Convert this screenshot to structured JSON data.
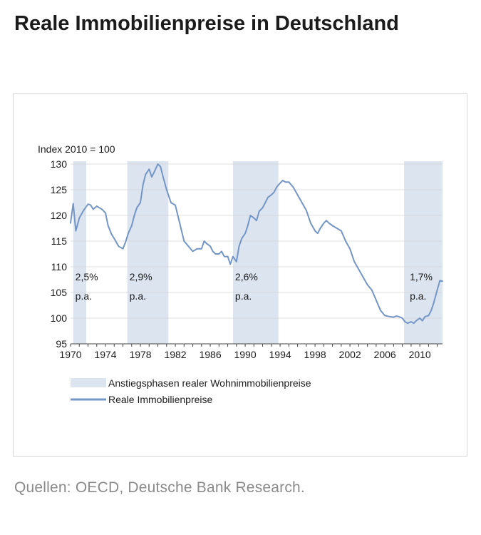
{
  "title": "Reale Immobilienpreise in Deutschland",
  "source": "Quellen: OECD, Deutsche Bank Research.",
  "colors": {
    "line": "#7496c6",
    "shading": "#dce4f0",
    "text": "#1b1b1b",
    "source": "#8a8a8a"
  },
  "chart_data": {
    "type": "line",
    "ylabel": "Index 2010 = 100",
    "ylim": [
      95,
      130
    ],
    "yticks": [
      95,
      100,
      105,
      110,
      115,
      120,
      125,
      130
    ],
    "xlim": [
      1970,
      2012.6
    ],
    "xticks": [
      1970,
      1974,
      1978,
      1982,
      1986,
      1990,
      1994,
      1998,
      2002,
      2006,
      2010
    ],
    "legend": [
      {
        "label": "Anstiegsphasen realer Wohnimmobilienpreise",
        "kind": "area"
      },
      {
        "label": "Reale Immobilienpreise",
        "kind": "line"
      }
    ],
    "shaded_periods": [
      {
        "start": 1970.3,
        "end": 1971.8,
        "label_line1": "2,5%",
        "label_line2": "p.a."
      },
      {
        "start": 1976.5,
        "end": 1981.2,
        "label_line1": "2,9%",
        "label_line2": "p.a."
      },
      {
        "start": 1988.6,
        "end": 1993.8,
        "label_line1": "2,6%",
        "label_line2": "p.a."
      },
      {
        "start": 2008.2,
        "end": 2012.6,
        "label_line1": "1,7%",
        "label_line2": "p.a."
      }
    ],
    "series": [
      {
        "name": "Reale Immobilienpreise",
        "x": [
          1970.0,
          1970.3,
          1970.6,
          1971.0,
          1971.5,
          1972.0,
          1972.3,
          1972.6,
          1973.0,
          1973.3,
          1973.6,
          1974.0,
          1974.3,
          1974.7,
          1975.0,
          1975.5,
          1976.0,
          1976.3,
          1976.6,
          1977.0,
          1977.3,
          1977.6,
          1978.0,
          1978.3,
          1978.6,
          1979.0,
          1979.3,
          1979.6,
          1980.0,
          1980.3,
          1980.6,
          1981.0,
          1981.5,
          1982.0,
          1982.5,
          1983.0,
          1983.5,
          1984.0,
          1984.5,
          1985.0,
          1985.3,
          1985.6,
          1986.0,
          1986.3,
          1986.6,
          1987.0,
          1987.3,
          1987.6,
          1988.0,
          1988.3,
          1988.6,
          1989.0,
          1989.3,
          1989.6,
          1990.0,
          1990.3,
          1990.6,
          1991.0,
          1991.3,
          1991.6,
          1992.0,
          1992.3,
          1992.6,
          1993.0,
          1993.3,
          1993.6,
          1994.0,
          1994.3,
          1994.6,
          1995.0,
          1995.5,
          1996.0,
          1996.5,
          1997.0,
          1997.5,
          1998.0,
          1998.3,
          1998.6,
          1999.0,
          1999.3,
          1999.6,
          2000.0,
          2000.5,
          2001.0,
          2001.5,
          2002.0,
          2002.5,
          2003.0,
          2003.5,
          2004.0,
          2004.5,
          2005.0,
          2005.5,
          2006.0,
          2006.5,
          2007.0,
          2007.3,
          2007.6,
          2008.0,
          2008.3,
          2008.6,
          2009.0,
          2009.3,
          2009.6,
          2010.0,
          2010.3,
          2010.6,
          2011.0,
          2011.3,
          2011.6,
          2012.0,
          2012.3,
          2012.6
        ],
        "values": [
          118.5,
          122.3,
          117.0,
          119.5,
          121.0,
          122.2,
          122.0,
          121.2,
          121.8,
          121.5,
          121.2,
          120.5,
          118.0,
          116.3,
          115.5,
          114.0,
          113.5,
          114.8,
          116.5,
          118.0,
          120.0,
          121.5,
          122.5,
          126.0,
          128.0,
          129.0,
          127.5,
          128.5,
          130.0,
          129.5,
          127.5,
          125.0,
          122.5,
          122.0,
          118.5,
          115.0,
          114.0,
          113.0,
          113.5,
          113.5,
          115.0,
          114.5,
          114.0,
          113.0,
          112.5,
          112.5,
          113.0,
          112.0,
          112.0,
          110.5,
          112.0,
          111.0,
          114.0,
          115.5,
          116.5,
          118.0,
          120.0,
          119.5,
          119.0,
          120.8,
          121.5,
          122.5,
          123.5,
          124.0,
          124.5,
          125.5,
          126.3,
          126.8,
          126.5,
          126.5,
          125.5,
          124.0,
          122.5,
          121.0,
          118.5,
          117.0,
          116.5,
          117.5,
          118.5,
          119.0,
          118.5,
          118.0,
          117.5,
          117.0,
          115.0,
          113.5,
          111.0,
          109.5,
          108.0,
          106.5,
          105.5,
          103.5,
          101.5,
          100.5,
          100.3,
          100.2,
          100.4,
          100.3,
          100.0,
          99.3,
          99.0,
          99.3,
          99.0,
          99.5,
          100.0,
          99.5,
          100.3,
          100.5,
          101.5,
          103.0,
          105.5,
          107.3,
          107.2
        ]
      }
    ]
  }
}
